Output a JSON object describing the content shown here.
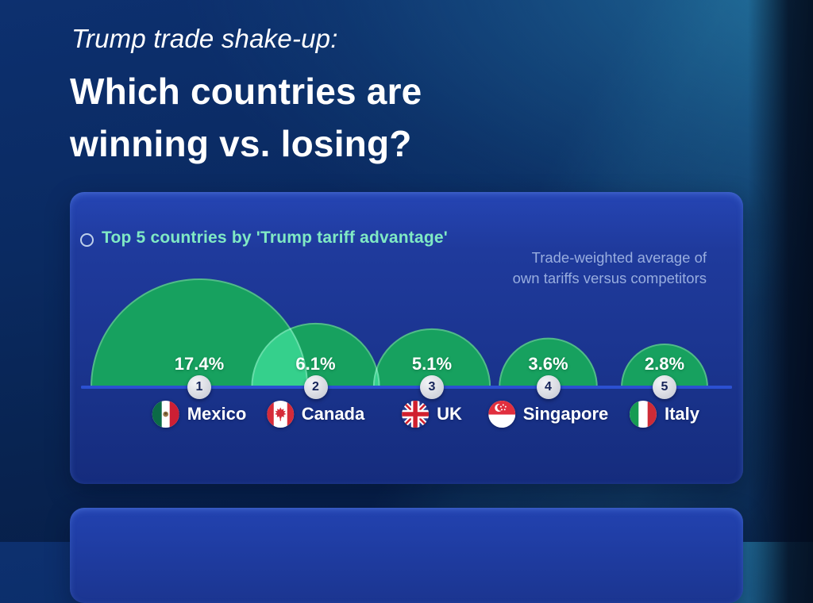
{
  "header": {
    "kicker": "Trump trade shake-up:",
    "title_line1": "Which countries are",
    "title_line2": "winning vs. losing?"
  },
  "panel": {
    "heading": "Top 5 countries by 'Trump tariff advantage'",
    "note_line1": "Trade-weighted average of",
    "note_line2": "own tariffs versus competitors"
  },
  "chart_data": {
    "type": "bubble",
    "title": "Top 5 countries by 'Trump tariff advantage'",
    "subtitle": "Trade-weighted average of own tariffs versus competitors",
    "value_unit": "percent",
    "categories": [
      "Mexico",
      "Canada",
      "UK",
      "Singapore",
      "Italy"
    ],
    "values": [
      17.4,
      6.1,
      5.1,
      3.6,
      2.8
    ],
    "items": [
      {
        "rank": "1",
        "country": "Mexico",
        "value": 17.4,
        "label": "17.4%",
        "flag": "mexico-flag-icon"
      },
      {
        "rank": "2",
        "country": "Canada",
        "value": 6.1,
        "label": "6.1%",
        "flag": "canada-flag-icon"
      },
      {
        "rank": "3",
        "country": "UK",
        "value": 5.1,
        "label": "5.1%",
        "flag": "uk-flag-icon"
      },
      {
        "rank": "4",
        "country": "Singapore",
        "value": 3.6,
        "label": "3.6%",
        "flag": "singapore-flag-icon"
      },
      {
        "rank": "5",
        "country": "Italy",
        "value": 2.8,
        "label": "2.8%",
        "flag": "italy-flag-icon"
      }
    ],
    "colors": {
      "bubble": "#17a15f",
      "overlap": "#35d08c",
      "baseline": "#2b50d2",
      "rank_badge": "#d9dbe2",
      "heading": "#80e9c4",
      "note": "#98addf"
    },
    "layout_hints": {
      "legend": "none",
      "grid": false,
      "baseline": true,
      "size_by": "area"
    }
  }
}
